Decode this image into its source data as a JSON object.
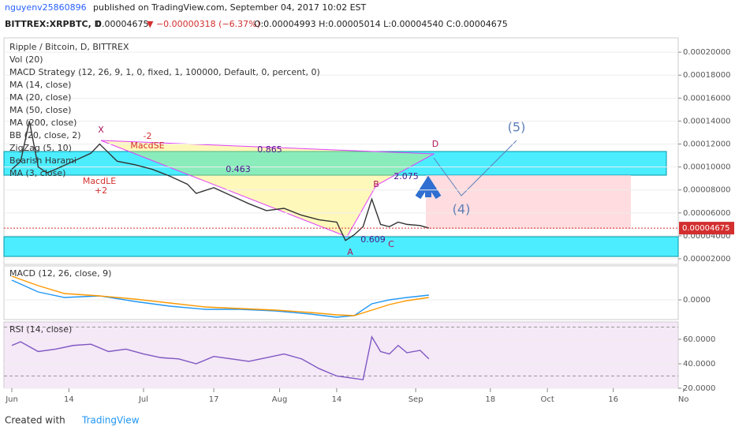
{
  "header": {
    "author": "nguyenv25860896",
    "published": "published on TradingView.com, September 04, 2017 10:02 EST",
    "symbol": "BITTREX:XRPBTC, D",
    "last": "0.00004675",
    "change": "▼ −0.00000318 (−6.37%)",
    "ohlc": "O:0.00004993 H:0.00005014 L:0.00004540 C:0.00004675"
  },
  "footer": {
    "created": "Created with",
    "brand": "TradingView"
  },
  "chart_data": [
    {
      "type": "line",
      "title": "Ripple / Bitcoin, D, BITTREX",
      "indicators": [
        "Vol (20)",
        "MACD Strategy (12, 26, 9, 1, 0, fixed, 1, 100000, Default, 0, percent, 0)",
        "MA (14, close)",
        "MA (20, close)",
        "MA (50, close)",
        "MA (200, close)",
        "BB (20, close, 2)",
        "ZigZag (5, 10)",
        "Bearish Harami",
        "MA (3, close)"
      ],
      "annotations": [
        "X",
        "A",
        "B",
        "C",
        "D",
        "0.865",
        "0.463",
        "2.075",
        "0.609",
        "(4)",
        "(5)",
        "MacdSE",
        "MacdLE",
        "+2",
        "-2"
      ],
      "x": [
        0,
        2,
        4,
        6,
        8,
        10,
        14,
        18,
        20,
        24,
        28,
        32,
        36,
        40,
        42,
        46,
        50,
        54,
        58,
        62,
        66,
        70,
        74,
        76,
        78,
        80,
        82,
        84,
        86,
        88,
        90,
        93,
        95
      ],
      "series": [
        {
          "color": "#333333",
          "values": [
            9.8e-05,
            0.000105,
            0.00014,
            0.0001,
            9.5e-05,
            9.8e-05,
            0.000105,
            0.000112,
            0.00012,
            0.000105,
            0.000102,
            9.8e-05,
            9.2e-05,
            8.5e-05,
            7.7e-05,
            8.2e-05,
            7.5e-05,
            6.8e-05,
            6.2e-05,
            6.4e-05,
            5.8e-05,
            5.4e-05,
            5.2e-05,
            3.6e-05,
            4.1e-05,
            4.8e-05,
            7.2e-05,
            5e-05,
            4.8e-05,
            5.2e-05,
            5e-05,
            4.9e-05,
            4.675e-05
          ]
        }
      ],
      "last_price": {
        "value": 4.675e-05,
        "label": "0.00004675"
      },
      "xlim": [
        -1.8,
        151.8
      ],
      "ylim": [
        1.52e-05,
        0.0002111
      ],
      "yticks": [
        {
          "value": 2e-05,
          "label": "0.00002000"
        },
        {
          "value": 4e-05,
          "label": "0.00004000"
        },
        {
          "value": 6e-05,
          "label": "0.00006000"
        },
        {
          "value": 8e-05,
          "label": "0.00008000"
        },
        {
          "value": 0.0001,
          "label": "0.00010000"
        },
        {
          "value": 0.00012,
          "label": "0.00012000"
        },
        {
          "value": 0.00014,
          "label": "0.00014000"
        },
        {
          "value": 0.00016,
          "label": "0.00016000"
        },
        {
          "value": 0.00018,
          "label": "0.00018000"
        },
        {
          "value": 0.0002,
          "label": "0.00020000"
        }
      ]
    },
    {
      "type": "line",
      "title": "MACD (12, 26, close, 9)",
      "x": [
        0,
        6,
        12,
        20,
        28,
        36,
        44,
        52,
        60,
        68,
        74,
        78,
        82,
        86,
        90,
        95
      ],
      "series": [
        {
          "color": "#2196f3",
          "values": [
            2.5e-06,
            1e-06,
            3e-07,
            5e-07,
            -2e-07,
            -8e-07,
            -1.2e-06,
            -1.2e-06,
            -1.4e-06,
            -1.8e-06,
            -2.2e-06,
            -2e-06,
            -5e-07,
            0,
            3e-07,
            6e-07
          ]
        },
        {
          "color": "#ff9800",
          "values": [
            3e-06,
            1.8e-06,
            8e-07,
            5e-07,
            1e-07,
            -4e-07,
            -9e-07,
            -1.1e-06,
            -1.3e-06,
            -1.6e-06,
            -1.9e-06,
            -2e-06,
            -1.3e-06,
            -6e-07,
            -1e-07,
            3e-07
          ]
        }
      ],
      "xlim": [
        -1.8,
        151.8
      ],
      "ylim": [
        -2.5e-06,
        4.3e-06
      ],
      "yticks": [
        {
          "value": 0,
          "label": "0.0000"
        }
      ]
    },
    {
      "type": "line",
      "title": "RSI (14, close)",
      "x": [
        0,
        2,
        6,
        10,
        14,
        18,
        22,
        26,
        30,
        34,
        38,
        42,
        46,
        50,
        54,
        58,
        62,
        66,
        70,
        74,
        78,
        80,
        82,
        84,
        86,
        88,
        90,
        93,
        95
      ],
      "series": [
        {
          "color": "#7e57c2",
          "values": [
            55,
            58,
            50,
            52,
            55,
            56,
            50,
            52,
            48,
            45,
            44,
            40,
            46,
            44,
            42,
            45,
            48,
            44,
            36,
            30,
            28,
            27,
            62,
            50,
            48,
            55,
            49,
            51,
            44
          ]
        }
      ],
      "xlim": [
        -1.8,
        151.8
      ],
      "ylim": [
        20,
        74.2
      ],
      "yticks": [
        {
          "value": 60,
          "label": "60.0000"
        },
        {
          "value": 40,
          "label": "40.0000"
        },
        {
          "value": 20,
          "label": "20.0000"
        }
      ],
      "xticks": [
        {
          "value": 0,
          "label": "Jun"
        },
        {
          "value": 13,
          "label": "14"
        },
        {
          "value": 30,
          "label": "Jul"
        },
        {
          "value": 46,
          "label": "17"
        },
        {
          "value": 61,
          "label": "Aug"
        },
        {
          "value": 74,
          "label": "14"
        },
        {
          "value": 92,
          "label": "Sep"
        },
        {
          "value": 109,
          "label": "18"
        },
        {
          "value": 122,
          "label": "Oct"
        },
        {
          "value": 137,
          "label": "16"
        },
        {
          "value": 153,
          "label": "No"
        }
      ]
    }
  ]
}
